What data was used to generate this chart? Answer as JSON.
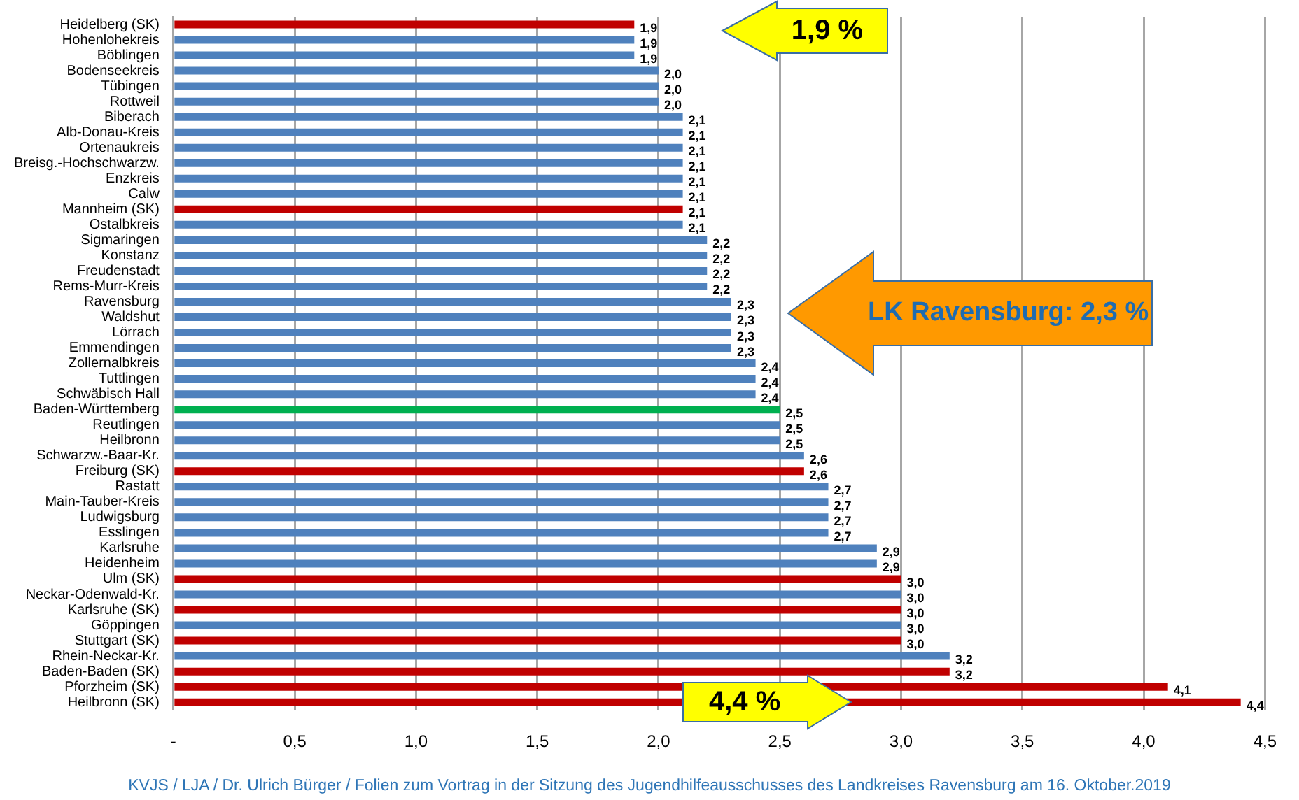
{
  "chart_data": {
    "type": "bar",
    "orientation": "horizontal",
    "categories": [
      "Heidelberg (SK)",
      "Hohenlohekreis",
      "Böblingen",
      "Bodenseekreis",
      "Tübingen",
      "Rottweil",
      "Biberach",
      "Alb-Donau-Kreis",
      "Ortenaukreis",
      "Breisg.-Hochschwarzw.",
      "Enzkreis",
      "Calw",
      "Mannheim (SK)",
      "Ostalbkreis",
      "Sigmaringen",
      "Konstanz",
      "Freudenstadt",
      "Rems-Murr-Kreis",
      "Ravensburg",
      "Waldshut",
      "Lörrach",
      "Emmendingen",
      "Zollernalbkreis",
      "Tuttlingen",
      "Schwäbisch Hall",
      "Baden-Württemberg",
      "Reutlingen",
      "Heilbronn",
      "Schwarzw.-Baar-Kr.",
      "Freiburg (SK)",
      "Rastatt",
      "Main-Tauber-Kreis",
      "Ludwigsburg",
      "Esslingen",
      "Karlsruhe",
      "Heidenheim",
      "Ulm (SK)",
      "Neckar-Odenwald-Kr.",
      "Karlsruhe (SK)",
      "Göppingen",
      "Stuttgart (SK)",
      "Rhein-Neckar-Kr.",
      "Baden-Baden (SK)",
      "Pforzheim (SK)",
      "Heilbronn (SK)"
    ],
    "values": [
      1.9,
      1.9,
      1.9,
      2.0,
      2.0,
      2.0,
      2.1,
      2.1,
      2.1,
      2.1,
      2.1,
      2.1,
      2.1,
      2.1,
      2.2,
      2.2,
      2.2,
      2.2,
      2.3,
      2.3,
      2.3,
      2.3,
      2.4,
      2.4,
      2.4,
      2.5,
      2.5,
      2.5,
      2.6,
      2.6,
      2.7,
      2.7,
      2.7,
      2.7,
      2.9,
      2.9,
      3.0,
      3.0,
      3.0,
      3.0,
      3.0,
      3.2,
      3.2,
      4.1,
      4.4
    ],
    "value_labels": [
      "1,9",
      "1,9",
      "1,9",
      "2,0",
      "2,0",
      "2,0",
      "2,1",
      "2,1",
      "2,1",
      "2,1",
      "2,1",
      "2,1",
      "2,1",
      "2,1",
      "2,2",
      "2,2",
      "2,2",
      "2,2",
      "2,3",
      "2,3",
      "2,3",
      "2,3",
      "2,4",
      "2,4",
      "2,4",
      "2,5",
      "2,5",
      "2,5",
      "2,6",
      "2,6",
      "2,7",
      "2,7",
      "2,7",
      "2,7",
      "2,9",
      "2,9",
      "3,0",
      "3,0",
      "3,0",
      "3,0",
      "3,0",
      "3,2",
      "3,2",
      "4,1",
      "4,4"
    ],
    "colors": [
      "#c00000",
      "#4f81bd",
      "#4f81bd",
      "#4f81bd",
      "#4f81bd",
      "#4f81bd",
      "#4f81bd",
      "#4f81bd",
      "#4f81bd",
      "#4f81bd",
      "#4f81bd",
      "#4f81bd",
      "#c00000",
      "#4f81bd",
      "#4f81bd",
      "#4f81bd",
      "#4f81bd",
      "#4f81bd",
      "#4f81bd",
      "#4f81bd",
      "#4f81bd",
      "#4f81bd",
      "#4f81bd",
      "#4f81bd",
      "#4f81bd",
      "#00b050",
      "#4f81bd",
      "#4f81bd",
      "#4f81bd",
      "#c00000",
      "#4f81bd",
      "#4f81bd",
      "#4f81bd",
      "#4f81bd",
      "#4f81bd",
      "#4f81bd",
      "#c00000",
      "#4f81bd",
      "#c00000",
      "#4f81bd",
      "#c00000",
      "#4f81bd",
      "#c00000",
      "#c00000",
      "#c00000"
    ],
    "xlim": [
      0,
      4.5
    ],
    "xticks": [
      {
        "value": 0,
        "label": "-"
      },
      {
        "value": 0.5,
        "label": "0,5"
      },
      {
        "value": 1,
        "label": "1,0"
      },
      {
        "value": 1.5,
        "label": "1,5"
      },
      {
        "value": 2,
        "label": "2,0"
      },
      {
        "value": 2.5,
        "label": "2,5"
      },
      {
        "value": 3,
        "label": "3,0"
      },
      {
        "value": 3.5,
        "label": "3,5"
      },
      {
        "value": 4,
        "label": "4,0"
      },
      {
        "value": 4.5,
        "label": "4,5"
      }
    ],
    "grid": "x",
    "legend": false,
    "annotations": [
      "1,9 %",
      "LK Ravensburg: 2,3 %",
      {
        "text": "4,4 %",
        "x": 2.8,
        "y": "Heilbronn (SK)"
      },
      "KVJS / LJA / Dr. Ulrich Bürger / Folien zum Vortrag in der Sitzung des Jugendhilfeausschusses des Landkreises Ravensburg am 16. Oktober.2019"
    ]
  }
}
